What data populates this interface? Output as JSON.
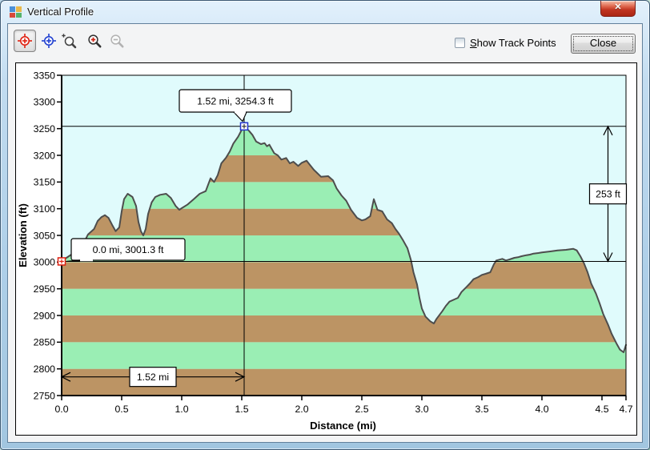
{
  "window": {
    "title": "Vertical Profile",
    "close_glyph": "✕"
  },
  "toolbar": {
    "buttons": [
      {
        "id": "red-position-marker",
        "icon": "red-target-icon",
        "active": true
      },
      {
        "id": "blue-position-marker",
        "icon": "blue-target-icon",
        "active": false
      },
      {
        "id": "zoom-selection",
        "icon": "magnifier-select-icon",
        "active": false
      },
      {
        "id": "zoom-in",
        "icon": "magnifier-plus-icon",
        "active": false
      },
      {
        "id": "zoom-out",
        "icon": "magnifier-minus-icon",
        "active": false,
        "disabled": true
      }
    ]
  },
  "controls": {
    "show_track_points": {
      "accelerator": "S",
      "label_rest": "how Track Points",
      "checked": false
    },
    "close_label": "Close"
  },
  "chart_data": {
    "type": "area",
    "title": "",
    "xlabel": "Distance  (mi)",
    "ylabel": "Elevation (ft)",
    "xlim": [
      0,
      4.7
    ],
    "ylim": [
      2750,
      3350
    ],
    "xticks": [
      "0.0",
      "0.5",
      "1.0",
      "1.5",
      "2.0",
      "2.5",
      "3.0",
      "3.5",
      "4.0",
      "4.5",
      "4.7"
    ],
    "yticks": [
      2750,
      2800,
      2850,
      2900,
      2950,
      3000,
      3050,
      3100,
      3150,
      3200,
      3250,
      3300,
      3350
    ],
    "grid": false,
    "colors": {
      "sky": "#e0fbfc",
      "band_brown": "#bc9464",
      "band_green": "#9aeeb4",
      "outline": "#4d4d4d",
      "red_marker": "#e02010",
      "blue_marker": "#2233cc"
    },
    "band_step_ft": 50,
    "profile": [
      [
        0.0,
        3001.3
      ],
      [
        0.04,
        3008
      ],
      [
        0.08,
        3014
      ],
      [
        0.13,
        3028
      ],
      [
        0.18,
        3034
      ],
      [
        0.22,
        3052
      ],
      [
        0.27,
        3062
      ],
      [
        0.3,
        3077
      ],
      [
        0.33,
        3084
      ],
      [
        0.36,
        3088
      ],
      [
        0.39,
        3083
      ],
      [
        0.42,
        3070
      ],
      [
        0.45,
        3058
      ],
      [
        0.48,
        3065
      ],
      [
        0.5,
        3095
      ],
      [
        0.52,
        3118
      ],
      [
        0.55,
        3128
      ],
      [
        0.57,
        3125
      ],
      [
        0.59,
        3122
      ],
      [
        0.62,
        3105
      ],
      [
        0.64,
        3075
      ],
      [
        0.66,
        3058
      ],
      [
        0.68,
        3050
      ],
      [
        0.7,
        3062
      ],
      [
        0.72,
        3090
      ],
      [
        0.75,
        3112
      ],
      [
        0.78,
        3122
      ],
      [
        0.82,
        3126
      ],
      [
        0.87,
        3128
      ],
      [
        0.91,
        3120
      ],
      [
        0.95,
        3105
      ],
      [
        0.98,
        3098
      ],
      [
        1.0,
        3101
      ],
      [
        1.05,
        3108
      ],
      [
        1.1,
        3118
      ],
      [
        1.15,
        3128
      ],
      [
        1.2,
        3133
      ],
      [
        1.24,
        3157
      ],
      [
        1.27,
        3150
      ],
      [
        1.3,
        3163
      ],
      [
        1.33,
        3185
      ],
      [
        1.37,
        3196
      ],
      [
        1.4,
        3207
      ],
      [
        1.43,
        3222
      ],
      [
        1.47,
        3235
      ],
      [
        1.5,
        3248
      ],
      [
        1.52,
        3254.3
      ],
      [
        1.56,
        3246
      ],
      [
        1.59,
        3238
      ],
      [
        1.62,
        3226
      ],
      [
        1.66,
        3221
      ],
      [
        1.69,
        3223
      ],
      [
        1.71,
        3217
      ],
      [
        1.73,
        3220
      ],
      [
        1.77,
        3204
      ],
      [
        1.8,
        3200
      ],
      [
        1.83,
        3192
      ],
      [
        1.87,
        3195
      ],
      [
        1.9,
        3185
      ],
      [
        1.93,
        3188
      ],
      [
        1.97,
        3180
      ],
      [
        2.0,
        3186
      ],
      [
        2.04,
        3190
      ],
      [
        2.1,
        3173
      ],
      [
        2.16,
        3160
      ],
      [
        2.22,
        3161
      ],
      [
        2.26,
        3153
      ],
      [
        2.29,
        3138
      ],
      [
        2.33,
        3125
      ],
      [
        2.37,
        3115
      ],
      [
        2.41,
        3098
      ],
      [
        2.46,
        3083
      ],
      [
        2.5,
        3078
      ],
      [
        2.53,
        3080
      ],
      [
        2.57,
        3086
      ],
      [
        2.6,
        3118
      ],
      [
        2.63,
        3098
      ],
      [
        2.67,
        3095
      ],
      [
        2.71,
        3080
      ],
      [
        2.75,
        3073
      ],
      [
        2.78,
        3062
      ],
      [
        2.81,
        3053
      ],
      [
        2.84,
        3042
      ],
      [
        2.88,
        3026
      ],
      [
        2.91,
        3003
      ],
      [
        2.93,
        2981
      ],
      [
        2.96,
        2958
      ],
      [
        2.98,
        2933
      ],
      [
        3.0,
        2913
      ],
      [
        3.03,
        2898
      ],
      [
        3.07,
        2889
      ],
      [
        3.1,
        2885
      ],
      [
        3.12,
        2893
      ],
      [
        3.17,
        2908
      ],
      [
        3.2,
        2918
      ],
      [
        3.23,
        2926
      ],
      [
        3.27,
        2930
      ],
      [
        3.3,
        2933
      ],
      [
        3.33,
        2944
      ],
      [
        3.37,
        2953
      ],
      [
        3.4,
        2960
      ],
      [
        3.43,
        2968
      ],
      [
        3.47,
        2972
      ],
      [
        3.5,
        2976
      ],
      [
        3.53,
        2978
      ],
      [
        3.57,
        2981
      ],
      [
        3.6,
        2996
      ],
      [
        3.62,
        3003
      ],
      [
        3.67,
        3006
      ],
      [
        3.7,
        3003
      ],
      [
        3.73,
        3005
      ],
      [
        3.77,
        3008
      ],
      [
        3.8,
        3009
      ],
      [
        3.83,
        3011
      ],
      [
        3.87,
        3013
      ],
      [
        3.9,
        3014
      ],
      [
        3.93,
        3016
      ],
      [
        3.97,
        3017
      ],
      [
        4.0,
        3018
      ],
      [
        4.07,
        3020
      ],
      [
        4.13,
        3022
      ],
      [
        4.2,
        3023
      ],
      [
        4.26,
        3025
      ],
      [
        4.29,
        3022
      ],
      [
        4.32,
        3011
      ],
      [
        4.35,
        2998
      ],
      [
        4.38,
        2981
      ],
      [
        4.41,
        2960
      ],
      [
        4.45,
        2941
      ],
      [
        4.48,
        2923
      ],
      [
        4.51,
        2903
      ],
      [
        4.55,
        2883
      ],
      [
        4.58,
        2866
      ],
      [
        4.62,
        2848
      ],
      [
        4.65,
        2836
      ],
      [
        4.68,
        2831
      ],
      [
        4.7,
        2845
      ]
    ],
    "markers": {
      "start": {
        "x": 0.0,
        "y": 3001.3,
        "label": "0.0 mi, 3001.3 ft",
        "color": "red"
      },
      "peak": {
        "x": 1.52,
        "y": 3254.3,
        "label": "1.52 mi, 3254.3 ft",
        "color": "blue"
      }
    },
    "measures": {
      "height": {
        "label": "253 ft",
        "x": 4.55,
        "y1": 3001.3,
        "y2": 3254.3
      },
      "distance": {
        "label": "1.52 mi",
        "y": 2785,
        "x1": 0.0,
        "x2": 1.52
      }
    }
  }
}
